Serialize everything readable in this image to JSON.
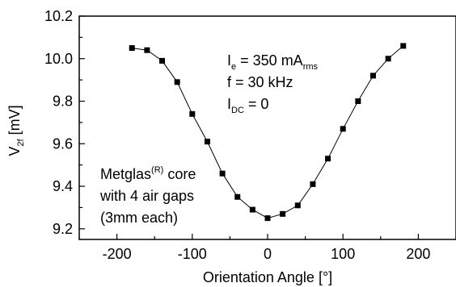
{
  "chart_data": {
    "type": "line",
    "xlabel": "Orientation Angle [°]",
    "ylabel": {
      "main": "V",
      "sub": "2f",
      "unit": " [mV]"
    },
    "xlim": [
      -250,
      250
    ],
    "ylim": [
      9.15,
      10.2
    ],
    "xticks": [
      -200,
      -100,
      0,
      100,
      200
    ],
    "xtick_labels": [
      "-200",
      "-100",
      "0",
      "100",
      "200"
    ],
    "yticks": [
      9.2,
      9.4,
      9.6,
      9.8,
      10.0,
      10.2
    ],
    "ytick_labels": [
      "9.2",
      "9.4",
      "9.6",
      "9.8",
      "10.0",
      "10.2"
    ],
    "grid": false,
    "marker": "square",
    "series": [
      {
        "x": [
          -180,
          -160,
          -140,
          -120,
          -100,
          -80,
          -60,
          -40,
          -20,
          0,
          20,
          40,
          60,
          80,
          100,
          120,
          140,
          160,
          180
        ],
        "y": [
          10.05,
          10.04,
          9.99,
          9.89,
          9.74,
          9.61,
          9.46,
          9.35,
          9.29,
          9.25,
          9.27,
          9.31,
          9.41,
          9.53,
          9.67,
          9.8,
          9.92,
          10.0,
          10.06
        ]
      }
    ],
    "annotations": {
      "params": [
        {
          "main": "I",
          "sub": "e",
          "mid": " = 350 mA",
          "sub2": "rms"
        },
        {
          "main": "f = 30 kHz"
        },
        {
          "main": "I",
          "sub": "DC",
          "mid": " = 0"
        }
      ],
      "core": [
        {
          "main": "Metglas",
          "sup": "(R)",
          "mid": " core"
        },
        {
          "main": "with 4 air gaps"
        },
        {
          "main": "(3mm each)"
        }
      ]
    }
  }
}
